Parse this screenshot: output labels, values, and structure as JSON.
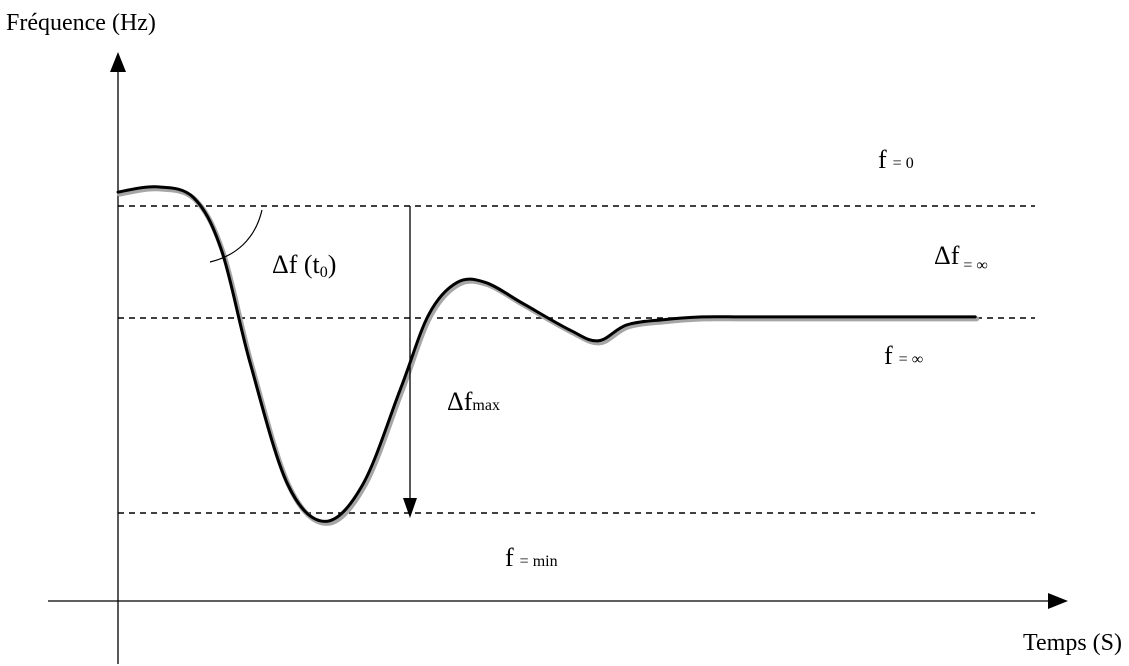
{
  "chart_data": {
    "type": "line",
    "xlabel": "Temps (S)",
    "ylabel": "Fréquence (Hz)",
    "grid": false,
    "reference_lines": {
      "f0": {
        "sym": "f",
        "sub": "= 0"
      },
      "finf": {
        "sym": "f",
        "sub": "= ∞"
      },
      "fmin": {
        "sym": "f",
        "sub": "= min"
      }
    },
    "annotations": {
      "delta_f_inf": {
        "sym": "Δf",
        "sub": "= ∞"
      },
      "delta_f_max": {
        "sym": "Δf",
        "sub": "max"
      },
      "delta_f_t0": {
        "pre": "Δf (t",
        "sub": "0",
        "post": ")"
      }
    },
    "x_range": [
      0,
      1
    ],
    "y_range": [
      0,
      1
    ],
    "series": [
      {
        "x": [
          0.0,
          0.04,
          0.08,
          0.11,
          0.14,
          0.18,
          0.22,
          0.26,
          0.3,
          0.33,
          0.36,
          0.39,
          0.43,
          0.48,
          0.51,
          0.54,
          0.58,
          0.62,
          0.66,
          0.7,
          0.8,
          0.91
        ],
        "y": [
          0.77,
          0.78,
          0.76,
          0.66,
          0.45,
          0.22,
          0.15,
          0.22,
          0.4,
          0.54,
          0.6,
          0.6,
          0.56,
          0.51,
          0.49,
          0.52,
          0.53,
          0.535,
          0.535,
          0.535,
          0.535,
          0.535
        ]
      }
    ]
  }
}
